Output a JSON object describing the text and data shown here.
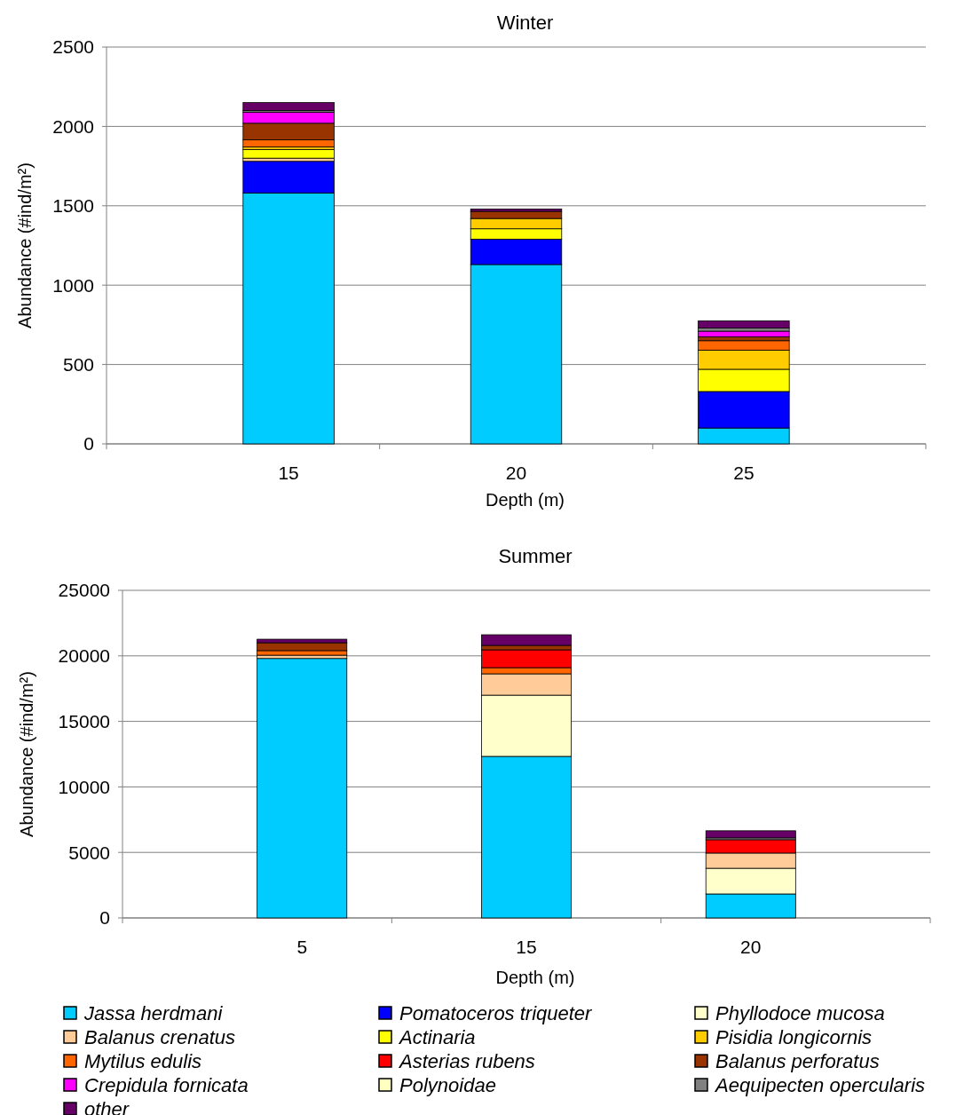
{
  "chart_data": [
    {
      "type": "bar",
      "stacked": true,
      "title": "Winter",
      "xlabel": "Depth (m)",
      "ylabel": "Abundance (#ind/m²)",
      "categories": [
        "15",
        "20",
        "25"
      ],
      "ylim": [
        0,
        2500
      ],
      "yticks": [
        0,
        500,
        1000,
        1500,
        2000,
        2500
      ],
      "grid": "y",
      "series": [
        {
          "color": "#00ccff",
          "values": [
            1580,
            1130,
            100
          ]
        },
        {
          "color": "#0000ff",
          "values": [
            200,
            160,
            230
          ]
        },
        {
          "color": "#ffcc99",
          "values": [
            20,
            0,
            0
          ]
        },
        {
          "color": "#ffff00",
          "values": [
            55,
            65,
            140
          ]
        },
        {
          "color": "#ffcc00",
          "values": [
            15,
            65,
            120
          ]
        },
        {
          "color": "#ff6600",
          "values": [
            45,
            0,
            60
          ]
        },
        {
          "color": "#993300",
          "values": [
            105,
            45,
            25
          ]
        },
        {
          "color": "#ff00ff",
          "values": [
            70,
            0,
            35
          ]
        },
        {
          "color": "#808080",
          "values": [
            10,
            0,
            20
          ]
        },
        {
          "color": "#660066",
          "values": [
            50,
            15,
            45
          ]
        }
      ]
    },
    {
      "type": "bar",
      "stacked": true,
      "title": "Summer",
      "xlabel": "Depth (m)",
      "ylabel": "Abundance (#ind/m²)",
      "categories": [
        "5",
        "15",
        "20"
      ],
      "ylim": [
        0,
        25000
      ],
      "yticks": [
        0,
        5000,
        10000,
        15000,
        20000,
        25000
      ],
      "grid": "y",
      "legend": "bottom",
      "series": [
        {
          "name": "Jassa herdmani",
          "color": "#00ccff",
          "values": [
            19800,
            12330,
            1830
          ]
        },
        {
          "name": "Pomatoceros triqueter",
          "color": "#0000ff",
          "values": [
            0,
            0,
            0
          ]
        },
        {
          "name": "Phyllodoce mucosa",
          "color": "#ffffcc",
          "values": [
            0,
            4670,
            1960
          ]
        },
        {
          "name": "Balanus crenatus",
          "color": "#ffcc99",
          "values": [
            250,
            1630,
            1160
          ]
        },
        {
          "name": "Actinaria",
          "color": "#ffff00",
          "values": [
            0,
            0,
            0
          ]
        },
        {
          "name": "Pisidia longicornis",
          "color": "#ffcc00",
          "values": [
            0,
            0,
            0
          ]
        },
        {
          "name": "Mytilus edulis",
          "color": "#ff6600",
          "values": [
            350,
            470,
            0
          ]
        },
        {
          "name": "Asterias rubens",
          "color": "#ff0000",
          "values": [
            0,
            1360,
            1020
          ]
        },
        {
          "name": "Balanus perforatus",
          "color": "#993300",
          "values": [
            600,
            340,
            0
          ]
        },
        {
          "name": "Crepidula fornicata",
          "color": "#ff00ff",
          "values": [
            0,
            0,
            0
          ]
        },
        {
          "name": "Polynoidae",
          "color": "#ffffc0",
          "values": [
            0,
            0,
            0
          ]
        },
        {
          "name": "Aequipecten opercularis",
          "color": "#808080",
          "values": [
            0,
            0,
            140
          ]
        },
        {
          "name": "other",
          "color": "#660066",
          "values": [
            270,
            810,
            540
          ]
        }
      ]
    }
  ]
}
